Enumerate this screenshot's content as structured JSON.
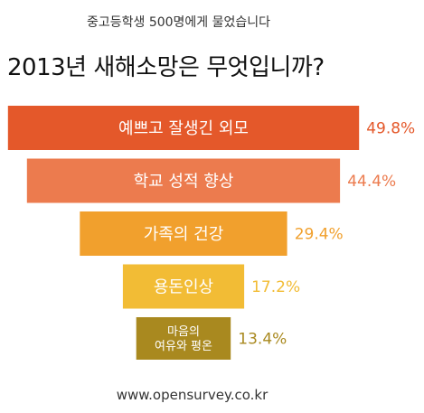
{
  "header": {
    "subtitle": "중고등학생 500명에게 물었습니다",
    "title": "2013년 새해소망은 무엇입니까?"
  },
  "footer": {
    "source": "www.opensurvey.co.kr"
  },
  "chart_data": {
    "type": "bar",
    "orientation": "horizontal",
    "categories": [
      "예쁘고 잘생긴 외모",
      "학교 성적 향상",
      "가족의 건강",
      "용돈인상",
      "마음의\n여유와 평온"
    ],
    "values": [
      49.8,
      44.4,
      29.4,
      17.2,
      13.4
    ],
    "value_labels": [
      "49.8%",
      "44.4%",
      "29.4%",
      "17.2%",
      "13.4%"
    ],
    "unit": "%",
    "colors": [
      "#E4582A",
      "#EC7B4E",
      "#F1A02D",
      "#F2BC35",
      "#A9891F"
    ],
    "label_colors": [
      "#E4582A",
      "#EC7B4E",
      "#F1A02D",
      "#F2BC35",
      "#A9891F"
    ],
    "bar_text_color": "#ffffff",
    "alignment": "centered-funnel",
    "grid": false,
    "legend": "none"
  }
}
